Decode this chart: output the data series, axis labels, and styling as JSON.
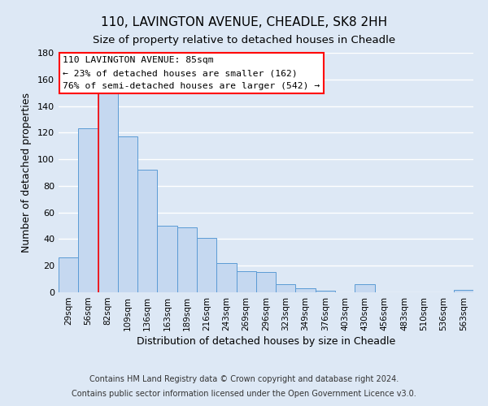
{
  "title": "110, LAVINGTON AVENUE, CHEADLE, SK8 2HH",
  "subtitle": "Size of property relative to detached houses in Cheadle",
  "xlabel": "Distribution of detached houses by size in Cheadle",
  "ylabel": "Number of detached properties",
  "bar_color": "#c5d8f0",
  "bar_edge_color": "#5b9bd5",
  "background_color": "#dde8f5",
  "grid_color": "#ffffff",
  "categories": [
    "29sqm",
    "56sqm",
    "82sqm",
    "109sqm",
    "136sqm",
    "163sqm",
    "189sqm",
    "216sqm",
    "243sqm",
    "269sqm",
    "296sqm",
    "323sqm",
    "349sqm",
    "376sqm",
    "403sqm",
    "430sqm",
    "456sqm",
    "483sqm",
    "510sqm",
    "536sqm",
    "563sqm"
  ],
  "values": [
    26,
    123,
    150,
    117,
    92,
    50,
    49,
    41,
    22,
    16,
    15,
    6,
    3,
    1,
    0,
    6,
    0,
    0,
    0,
    0,
    2
  ],
  "redline_index": 2,
  "annotation_title": "110 LAVINGTON AVENUE: 85sqm",
  "annotation_line1": "← 23% of detached houses are smaller (162)",
  "annotation_line2": "76% of semi-detached houses are larger (542) →",
  "ylim": [
    0,
    180
  ],
  "yticks": [
    0,
    20,
    40,
    60,
    80,
    100,
    120,
    140,
    160,
    180
  ],
  "footnote1": "Contains HM Land Registry data © Crown copyright and database right 2024.",
  "footnote2": "Contains public sector information licensed under the Open Government Licence v3.0."
}
